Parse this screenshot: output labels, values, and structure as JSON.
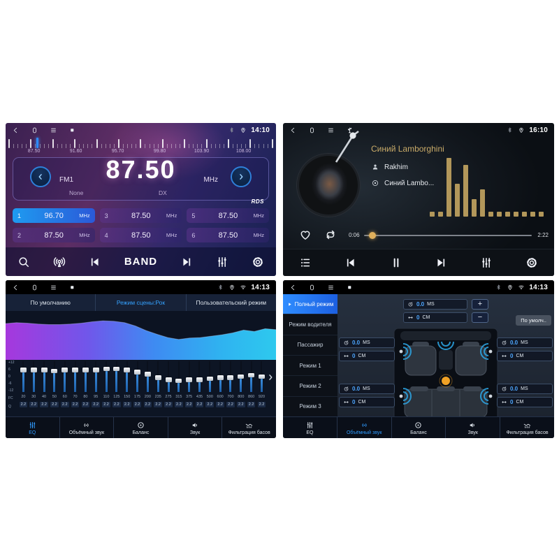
{
  "radio": {
    "status": {
      "time": "14:10"
    },
    "dial": {
      "labels": [
        "87.50",
        "91.60",
        "95.70",
        "99.80",
        "103.90",
        "108.00"
      ],
      "needle_pos": 0.105
    },
    "display": {
      "band": "FM1",
      "preset_name": "None",
      "frequency": "87.50",
      "unit": "MHz",
      "mode": "DX",
      "rds": "RDS"
    },
    "presets": [
      {
        "num": "1",
        "freq": "96.70",
        "unit": "MHz",
        "active": true
      },
      {
        "num": "2",
        "freq": "87.50",
        "unit": "MHz",
        "active": false
      },
      {
        "num": "3",
        "freq": "87.50",
        "unit": "MHz",
        "active": false
      },
      {
        "num": "4",
        "freq": "87.50",
        "unit": "MHz",
        "active": false
      },
      {
        "num": "5",
        "freq": "87.50",
        "unit": "MHz",
        "active": false
      },
      {
        "num": "6",
        "freq": "87.50",
        "unit": "MHz",
        "active": false
      }
    ],
    "toolbar": {
      "band_label": "BAND"
    }
  },
  "music": {
    "status": {
      "time": "16:10"
    },
    "track": {
      "title": "Синий Lamborghini",
      "artist": "Rakhim",
      "album": "Синий Lambo..."
    },
    "progress": {
      "elapsed": "0:06",
      "total": "2:22",
      "fraction": 0.05
    },
    "spectrum_bars": [
      8,
      8,
      100,
      56,
      88,
      30,
      46,
      8,
      8,
      8,
      8,
      8,
      8,
      8
    ],
    "accent_color": "#b2975a"
  },
  "equalizer": {
    "status": {
      "time": "14:13"
    },
    "tabs": [
      {
        "label": "По умолчанию",
        "active": false
      },
      {
        "label": "Режим сцены:Рок",
        "active": true
      },
      {
        "label": "Пользовательский режим",
        "active": false
      }
    ],
    "scale_labels": [
      "+12",
      "6",
      "0",
      "-6",
      "-12"
    ],
    "axis_labels": {
      "fc": "FC",
      "q": "Q"
    },
    "curve": [
      0.78,
      0.8,
      0.79,
      0.77,
      0.76,
      0.76,
      0.77,
      0.79,
      0.82,
      0.84,
      0.83,
      0.8,
      0.73,
      0.63,
      0.55,
      0.48,
      0.44,
      0.47,
      0.48,
      0.51,
      0.54,
      0.58,
      0.64,
      0.61,
      0.67,
      0.65
    ],
    "bands": [
      {
        "freq": "20",
        "q": "2.2",
        "gain": 6
      },
      {
        "freq": "30",
        "q": "2.2",
        "gain": 6
      },
      {
        "freq": "40",
        "q": "2.2",
        "gain": 6
      },
      {
        "freq": "50",
        "q": "2.2",
        "gain": 5
      },
      {
        "freq": "60",
        "q": "2.2",
        "gain": 6
      },
      {
        "freq": "70",
        "q": "2.2",
        "gain": 6
      },
      {
        "freq": "80",
        "q": "2.2",
        "gain": 6
      },
      {
        "freq": "95",
        "q": "2.2",
        "gain": 6
      },
      {
        "freq": "110",
        "q": "2.2",
        "gain": 7
      },
      {
        "freq": "125",
        "q": "2.2",
        "gain": 7
      },
      {
        "freq": "150",
        "q": "2.2",
        "gain": 6
      },
      {
        "freq": "175",
        "q": "2.2",
        "gain": 4
      },
      {
        "freq": "200",
        "q": "2.2",
        "gain": 2
      },
      {
        "freq": "235",
        "q": "2.2",
        "gain": -1
      },
      {
        "freq": "275",
        "q": "2.2",
        "gain": -3
      },
      {
        "freq": "315",
        "q": "2.2",
        "gain": -4
      },
      {
        "freq": "375",
        "q": "2.2",
        "gain": -3
      },
      {
        "freq": "435",
        "q": "2.2",
        "gain": -3
      },
      {
        "freq": "500",
        "q": "2.2",
        "gain": -2
      },
      {
        "freq": "600",
        "q": "2.2",
        "gain": -1
      },
      {
        "freq": "700",
        "q": "2.2",
        "gain": -1
      },
      {
        "freq": "800",
        "q": "2.2",
        "gain": 0
      },
      {
        "freq": "860",
        "q": "2.2",
        "gain": 1
      },
      {
        "freq": "920",
        "q": "2.2",
        "gain": 0
      }
    ],
    "toolbar": [
      {
        "label": "EQ",
        "active": true
      },
      {
        "label": "Объёмный звук",
        "active": false
      },
      {
        "label": "Баланс",
        "active": false
      },
      {
        "label": "Звук",
        "active": false
      },
      {
        "label": "Фильтрация басов",
        "active": false
      }
    ]
  },
  "surround": {
    "status": {
      "time": "14:13"
    },
    "sidebar": [
      {
        "label": "Полный режим",
        "active": true
      },
      {
        "label": "Режим водителя",
        "active": false
      },
      {
        "label": "Пассажир",
        "active": false
      },
      {
        "label": "Режим 1",
        "active": false
      },
      {
        "label": "Режим 2",
        "active": false
      },
      {
        "label": "Режим 3",
        "active": false
      }
    ],
    "default_button": "По умолч..",
    "center_control": {
      "ms": "0.0",
      "ms_unit": "MS",
      "cm": "0",
      "cm_unit": "CM",
      "plus": "+",
      "minus": "−"
    },
    "corner_controls": [
      {
        "ms": "0.0",
        "ms_unit": "MS",
        "cm": "0",
        "cm_unit": "CM"
      },
      {
        "ms": "0.0",
        "ms_unit": "MS",
        "cm": "0",
        "cm_unit": "CM"
      },
      {
        "ms": "0.0",
        "ms_unit": "MS",
        "cm": "0",
        "cm_unit": "CM"
      },
      {
        "ms": "0.0",
        "ms_unit": "MS",
        "cm": "0",
        "cm_unit": "CM"
      }
    ],
    "toolbar": [
      {
        "label": "EQ",
        "active": false
      },
      {
        "label": "Объёмный звук",
        "active": true
      },
      {
        "label": "Баланс",
        "active": false
      },
      {
        "label": "Звук",
        "active": false
      },
      {
        "label": "Фильтрация басов",
        "active": false
      }
    ]
  }
}
